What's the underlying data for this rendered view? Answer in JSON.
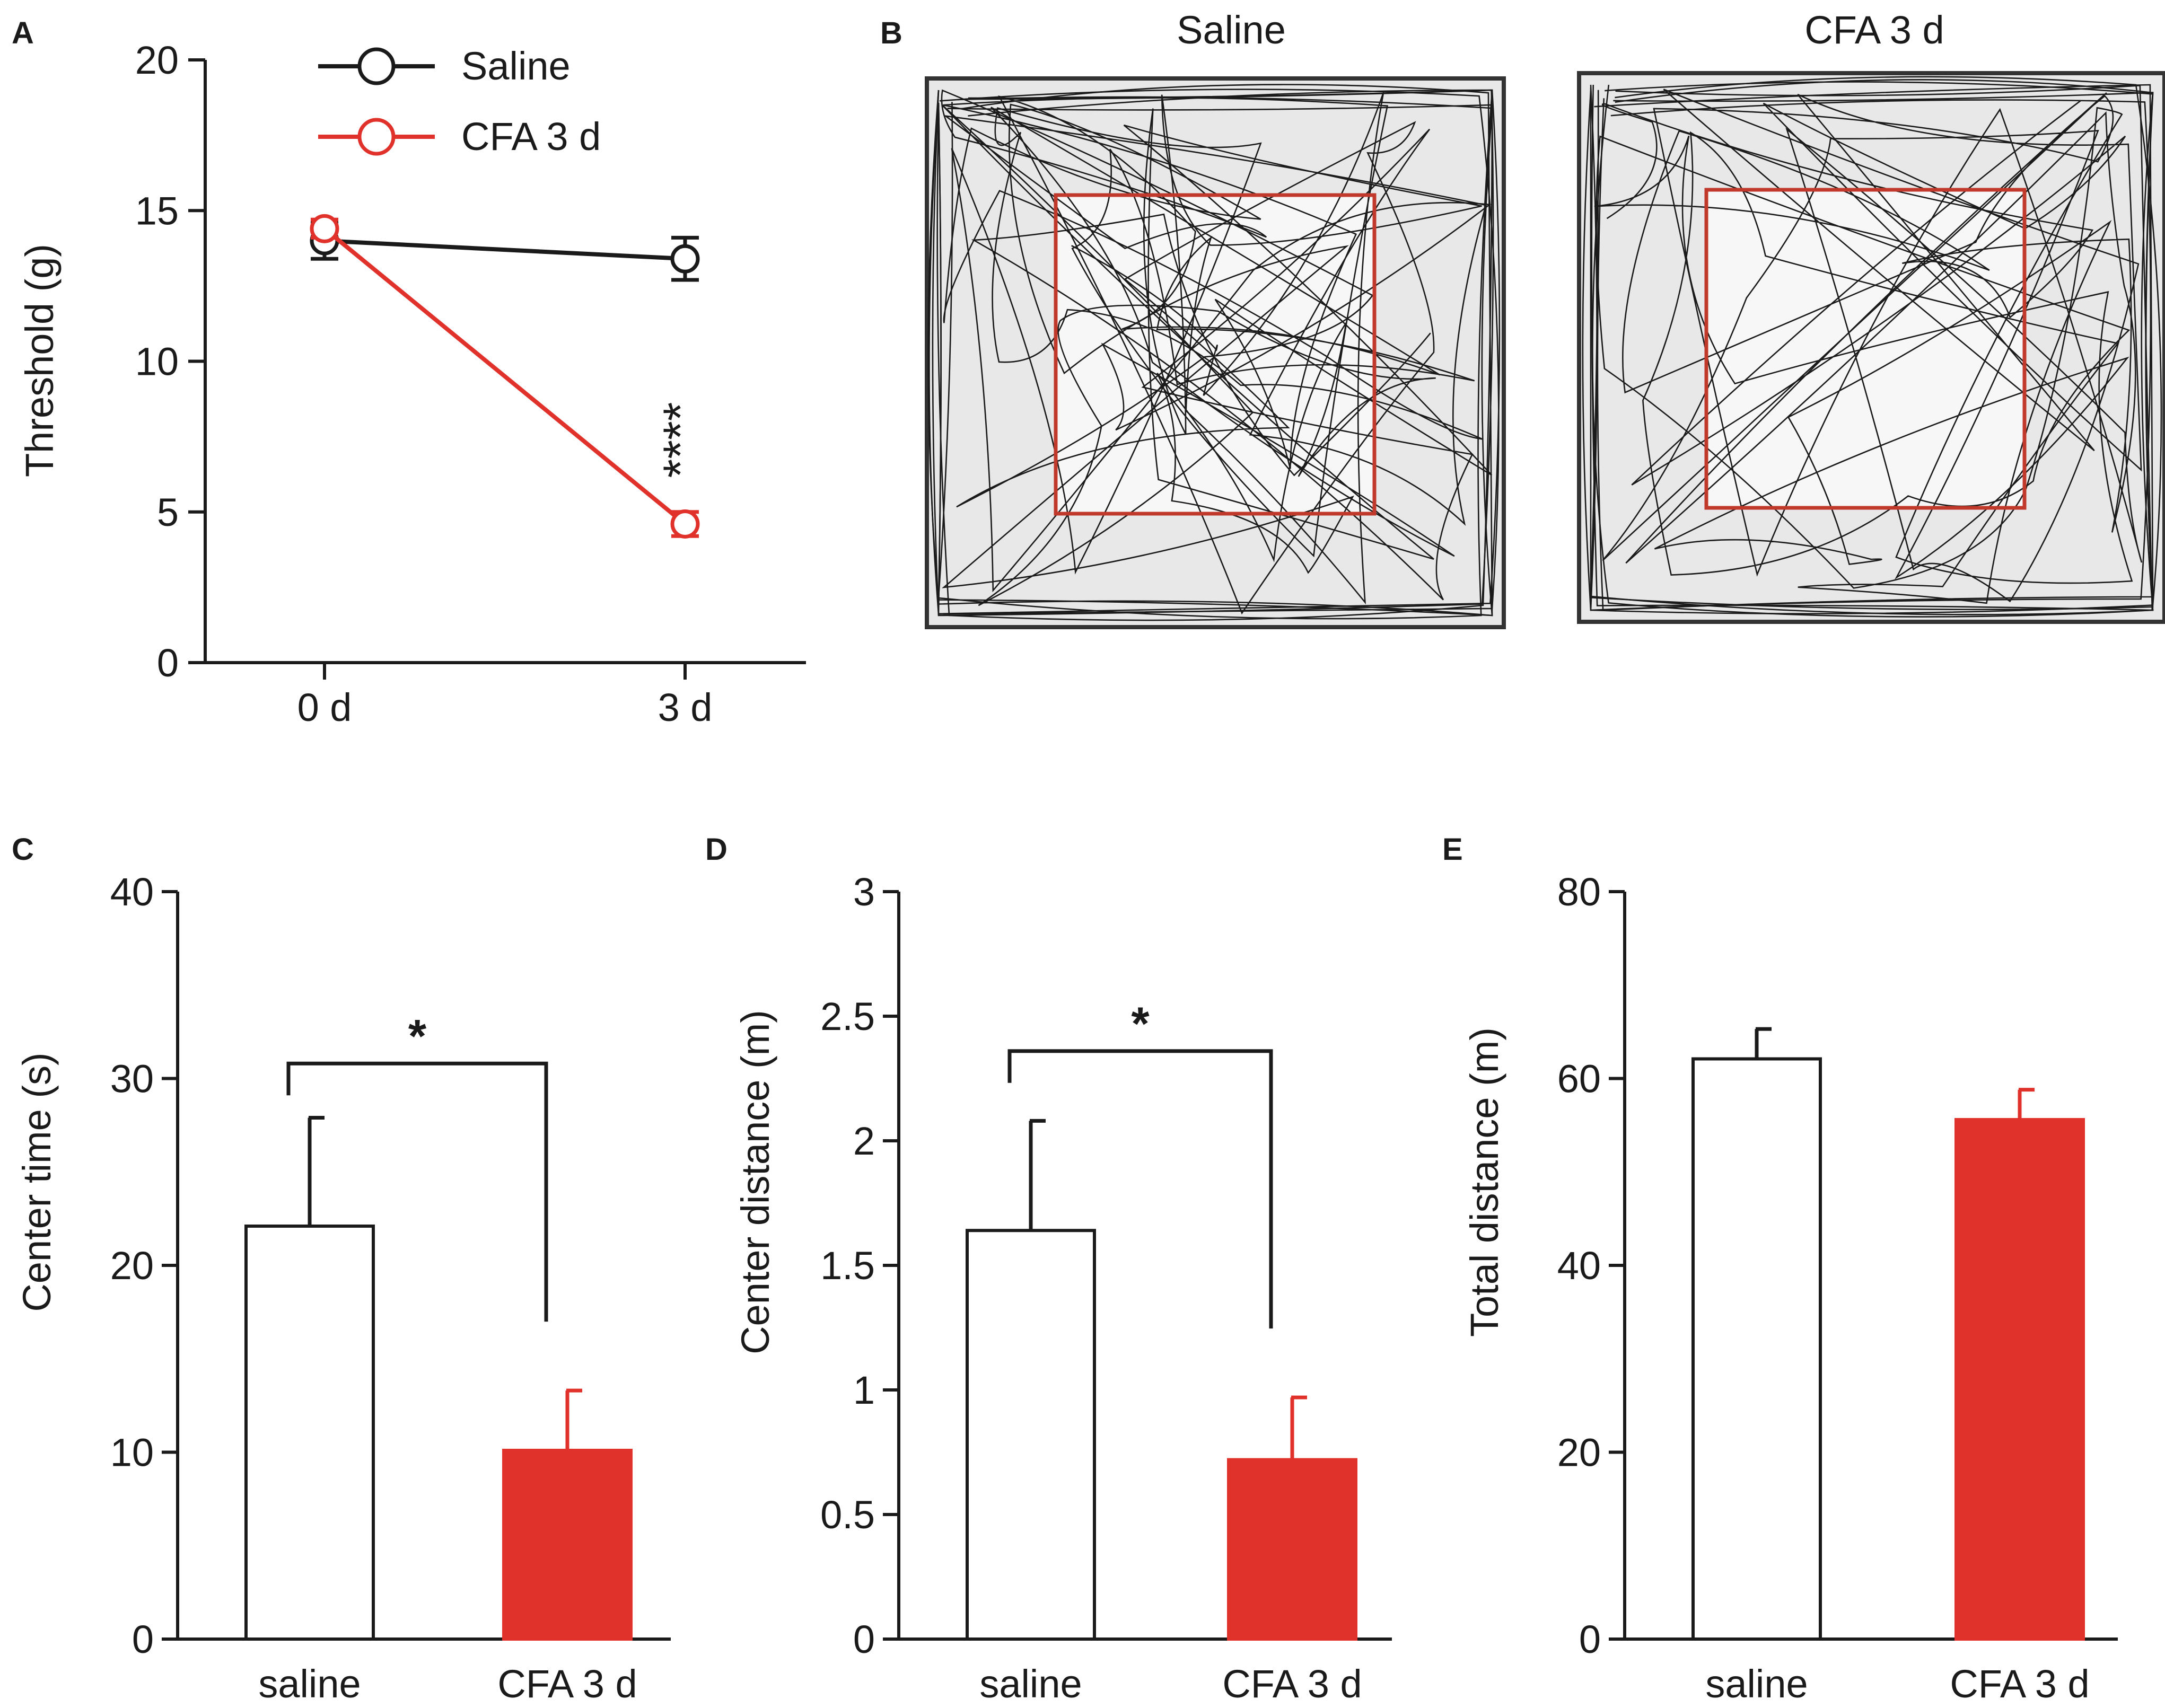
{
  "colors": {
    "saline": "#1a1a1a",
    "cfa": "#e0312b",
    "arena_bg": "#e8e8e8",
    "arena_border": "#333333"
  },
  "panels": {
    "A": "A",
    "B": "B",
    "C": "C",
    "D": "D",
    "E": "E"
  },
  "chart_data": [
    {
      "panel": "A",
      "type": "line",
      "ylabel": "Threshold (g)",
      "ylim": [
        0,
        20
      ],
      "yticks": [
        "0",
        "5",
        "10",
        "15",
        "20"
      ],
      "categories": [
        "0 d",
        "3 d"
      ],
      "legend_position": "top",
      "series": [
        {
          "name": "Saline",
          "values": [
            14.0,
            13.4
          ],
          "errors": [
            0.6,
            0.7
          ],
          "color_key": "saline"
        },
        {
          "name": "CFA 3 d",
          "values": [
            14.4,
            4.6
          ],
          "errors": [
            0.3,
            0.4
          ],
          "color_key": "cfa"
        }
      ],
      "annotations": [
        {
          "text": "****",
          "category": "3 d"
        }
      ]
    },
    {
      "panel": "B",
      "type": "other",
      "description_titles": [
        "Saline",
        "CFA  3 d"
      ]
    },
    {
      "panel": "C",
      "type": "bar",
      "ylabel": "Center time (s)",
      "ylim": [
        0,
        40
      ],
      "yticks": [
        "0",
        "10",
        "20",
        "30",
        "40"
      ],
      "categories": [
        "saline",
        "CFA 3 d"
      ],
      "values": [
        22.1,
        10.1
      ],
      "errors": [
        5.8,
        3.2
      ],
      "significance": {
        "text": "*",
        "between": [
          "saline",
          "CFA 3 d"
        ],
        "level": 30.8
      }
    },
    {
      "panel": "D",
      "type": "bar",
      "ylabel": "Center distance (m)",
      "ylim": [
        0,
        3
      ],
      "yticks": [
        "0",
        "0.5",
        "1",
        "1.5",
        "2",
        "2.5",
        "3"
      ],
      "categories": [
        "saline",
        "CFA 3 d"
      ],
      "values": [
        1.64,
        0.72
      ],
      "errors": [
        0.44,
        0.25
      ],
      "significance": {
        "text": "*",
        "between": [
          "saline",
          "CFA 3 d"
        ],
        "level": 2.36
      }
    },
    {
      "panel": "E",
      "type": "bar",
      "ylabel": "Total distance (m)",
      "ylim": [
        0,
        80
      ],
      "yticks": [
        "0",
        "20",
        "40",
        "60",
        "80"
      ],
      "categories": [
        "saline",
        "CFA 3 d"
      ],
      "values": [
        62.1,
        55.6
      ],
      "errors": [
        3.2,
        3.2
      ]
    }
  ]
}
